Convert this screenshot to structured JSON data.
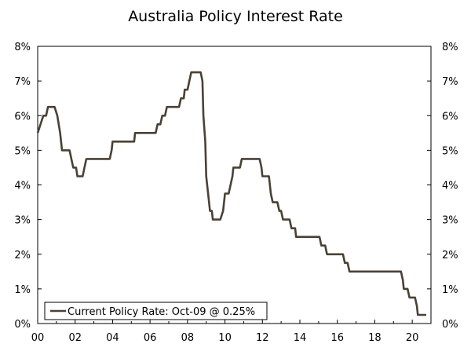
{
  "chart_data": {
    "type": "line",
    "title": "Australia Policy Interest Rate",
    "xlabel": "",
    "ylabel": "",
    "xlim": [
      2000,
      2021
    ],
    "ylim": [
      0,
      8
    ],
    "x_tick_values": [
      2000,
      2002,
      2004,
      2006,
      2008,
      2010,
      2012,
      2014,
      2016,
      2018,
      2020
    ],
    "x_tick_labels": [
      "00",
      "02",
      "04",
      "06",
      "08",
      "10",
      "12",
      "14",
      "16",
      "18",
      "20"
    ],
    "y_tick_values": [
      0,
      1,
      2,
      3,
      4,
      5,
      6,
      7,
      8
    ],
    "y_tick_labels": [
      "0%",
      "1%",
      "2%",
      "3%",
      "4%",
      "5%",
      "6%",
      "7%",
      "8%"
    ],
    "y_axis_right": true,
    "grid": false,
    "legend_position": "bottom-left",
    "line_color": "#4a4135",
    "series": [
      {
        "name": "Current Policy Rate: Oct-09 @ 0.25%",
        "points": [
          [
            2000.0,
            5.5
          ],
          [
            2000.15,
            5.75
          ],
          [
            2000.3,
            6.0
          ],
          [
            2000.45,
            6.0
          ],
          [
            2000.55,
            6.25
          ],
          [
            2000.9,
            6.25
          ],
          [
            2001.05,
            6.0
          ],
          [
            2001.2,
            5.5
          ],
          [
            2001.3,
            5.0
          ],
          [
            2001.7,
            5.0
          ],
          [
            2001.8,
            4.75
          ],
          [
            2001.9,
            4.5
          ],
          [
            2002.05,
            4.5
          ],
          [
            2002.12,
            4.25
          ],
          [
            2002.4,
            4.25
          ],
          [
            2002.5,
            4.5
          ],
          [
            2002.6,
            4.75
          ],
          [
            2003.85,
            4.75
          ],
          [
            2003.95,
            5.0
          ],
          [
            2004.0,
            5.25
          ],
          [
            2005.0,
            5.25
          ],
          [
            2005.15,
            5.25
          ],
          [
            2005.2,
            5.5
          ],
          [
            2006.3,
            5.5
          ],
          [
            2006.4,
            5.75
          ],
          [
            2006.55,
            5.75
          ],
          [
            2006.65,
            6.0
          ],
          [
            2006.8,
            6.0
          ],
          [
            2006.9,
            6.25
          ],
          [
            2007.55,
            6.25
          ],
          [
            2007.65,
            6.5
          ],
          [
            2007.8,
            6.5
          ],
          [
            2007.85,
            6.75
          ],
          [
            2008.0,
            6.75
          ],
          [
            2008.1,
            7.0
          ],
          [
            2008.2,
            7.25
          ],
          [
            2008.7,
            7.25
          ],
          [
            2008.8,
            7.0
          ],
          [
            2008.85,
            6.0
          ],
          [
            2008.95,
            5.25
          ],
          [
            2009.0,
            4.25
          ],
          [
            2009.1,
            3.75
          ],
          [
            2009.2,
            3.25
          ],
          [
            2009.3,
            3.25
          ],
          [
            2009.35,
            3.0
          ],
          [
            2009.75,
            3.0
          ],
          [
            2009.9,
            3.25
          ],
          [
            2010.0,
            3.75
          ],
          [
            2010.2,
            3.75
          ],
          [
            2010.3,
            4.0
          ],
          [
            2010.4,
            4.25
          ],
          [
            2010.45,
            4.5
          ],
          [
            2010.8,
            4.5
          ],
          [
            2010.9,
            4.75
          ],
          [
            2011.85,
            4.75
          ],
          [
            2011.95,
            4.5
          ],
          [
            2012.0,
            4.25
          ],
          [
            2012.35,
            4.25
          ],
          [
            2012.45,
            3.75
          ],
          [
            2012.55,
            3.5
          ],
          [
            2012.8,
            3.5
          ],
          [
            2012.9,
            3.25
          ],
          [
            2013.0,
            3.25
          ],
          [
            2013.1,
            3.0
          ],
          [
            2013.45,
            3.0
          ],
          [
            2013.55,
            2.75
          ],
          [
            2013.75,
            2.75
          ],
          [
            2013.8,
            2.5
          ],
          [
            2015.05,
            2.5
          ],
          [
            2015.15,
            2.25
          ],
          [
            2015.35,
            2.25
          ],
          [
            2015.45,
            2.0
          ],
          [
            2016.3,
            2.0
          ],
          [
            2016.4,
            1.75
          ],
          [
            2016.55,
            1.75
          ],
          [
            2016.65,
            1.5
          ],
          [
            2019.4,
            1.5
          ],
          [
            2019.5,
            1.25
          ],
          [
            2019.55,
            1.0
          ],
          [
            2019.75,
            1.0
          ],
          [
            2019.85,
            0.75
          ],
          [
            2020.15,
            0.75
          ],
          [
            2020.25,
            0.5
          ],
          [
            2020.3,
            0.25
          ],
          [
            2020.75,
            0.25
          ]
        ]
      }
    ]
  }
}
